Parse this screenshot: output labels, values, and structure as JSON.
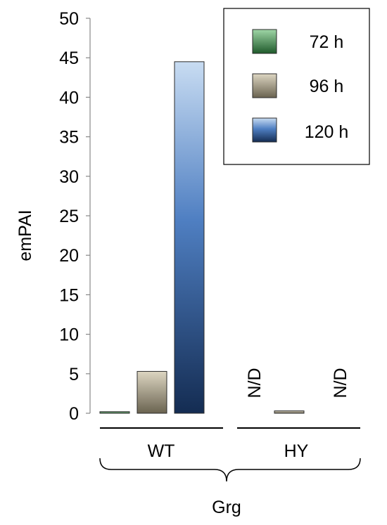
{
  "chart_data": {
    "type": "bar",
    "title": "",
    "ylabel": "emPAI",
    "ylim": [
      0,
      50
    ],
    "yticks": [
      0,
      5,
      10,
      15,
      20,
      25,
      30,
      35,
      40,
      45,
      50
    ],
    "categories": [
      "WT",
      "HY"
    ],
    "group_label": "Grg",
    "legend_position": "top-right",
    "series": [
      {
        "name": "72 h",
        "color": "#3e8a4e",
        "values": [
          0.2,
          null
        ]
      },
      {
        "name": "96 h",
        "color": "#9e9680",
        "values": [
          5.3,
          0.3
        ]
      },
      {
        "name": "120 h",
        "color": "#3d6fb0",
        "values": [
          44.5,
          null
        ]
      }
    ],
    "missing_label": "N/D"
  }
}
